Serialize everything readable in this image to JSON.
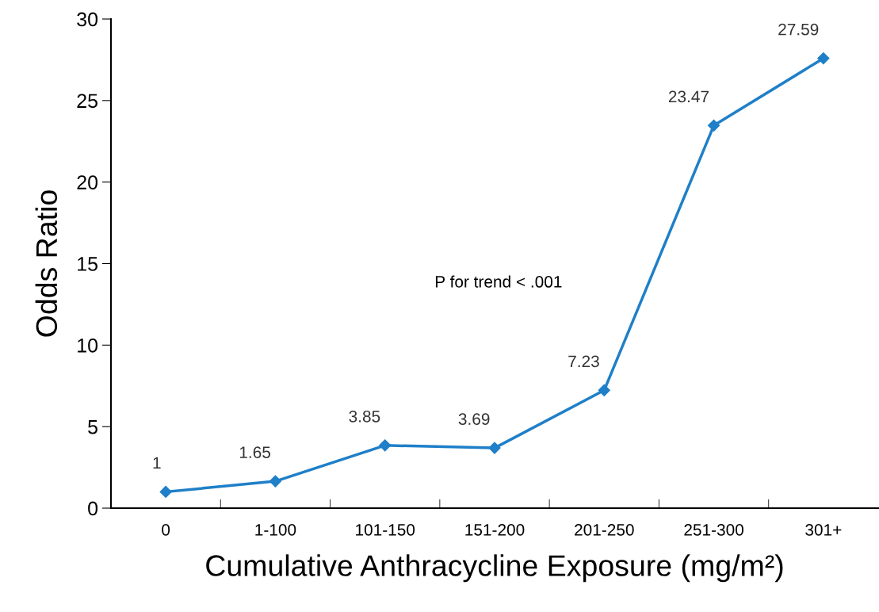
{
  "chart_data": {
    "type": "line",
    "xlabel": "Cumulative Anthracycline Exposure (mg/m²)",
    "ylabel": "Odds Ratio",
    "categories": [
      "0",
      "1-100",
      "101-150",
      "151-200",
      "201-250",
      "251-300",
      "301+"
    ],
    "series": [
      {
        "color": "#1f7fc8",
        "values": [
          1,
          1.65,
          3.85,
          3.69,
          7.23,
          23.47,
          27.59
        ]
      }
    ],
    "ylim": [
      0,
      30
    ],
    "yticks": [
      0,
      5,
      10,
      15,
      20,
      25,
      30
    ],
    "data_labels": true,
    "marker": "diamond",
    "line_style": "solid",
    "grid": false,
    "legend": false,
    "annotations": [
      "P for trend < .001"
    ]
  }
}
